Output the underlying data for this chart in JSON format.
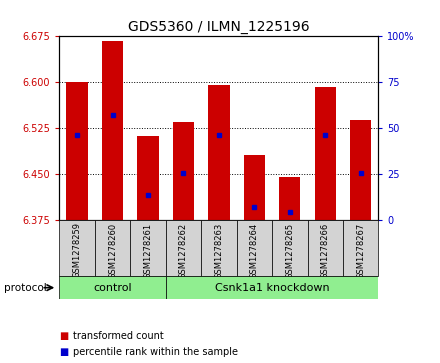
{
  "title": "GDS5360 / ILMN_1225196",
  "samples": [
    "GSM1278259",
    "GSM1278260",
    "GSM1278261",
    "GSM1278262",
    "GSM1278263",
    "GSM1278264",
    "GSM1278265",
    "GSM1278266",
    "GSM1278267"
  ],
  "bar_tops": [
    6.6,
    6.668,
    6.512,
    6.535,
    6.595,
    6.48,
    6.445,
    6.592,
    6.538
  ],
  "bar_bottom": 6.375,
  "blue_values": [
    6.513,
    6.547,
    6.415,
    6.452,
    6.513,
    6.395,
    6.388,
    6.513,
    6.452
  ],
  "ylim_left": [
    6.375,
    6.675
  ],
  "ylim_right": [
    0,
    100
  ],
  "yticks_left": [
    6.375,
    6.45,
    6.525,
    6.6,
    6.675
  ],
  "yticks_right": [
    0,
    25,
    50,
    75,
    100
  ],
  "bar_color": "#cc0000",
  "blue_color": "#0000cc",
  "bg_color": "#ffffff",
  "plot_bg": "#ffffff",
  "grid_color": "#000000",
  "control_samples": 3,
  "knockdown_samples": 6,
  "control_label": "control",
  "knockdown_label": "Csnk1a1 knockdown",
  "protocol_label": "protocol",
  "legend_red": "transformed count",
  "legend_blue": "percentile rank within the sample",
  "left_tick_color": "#cc0000",
  "right_tick_color": "#0000cc",
  "bar_width": 0.6,
  "box_bg": "#d3d3d3",
  "group_bg": "#90ee90",
  "title_fontsize": 10
}
